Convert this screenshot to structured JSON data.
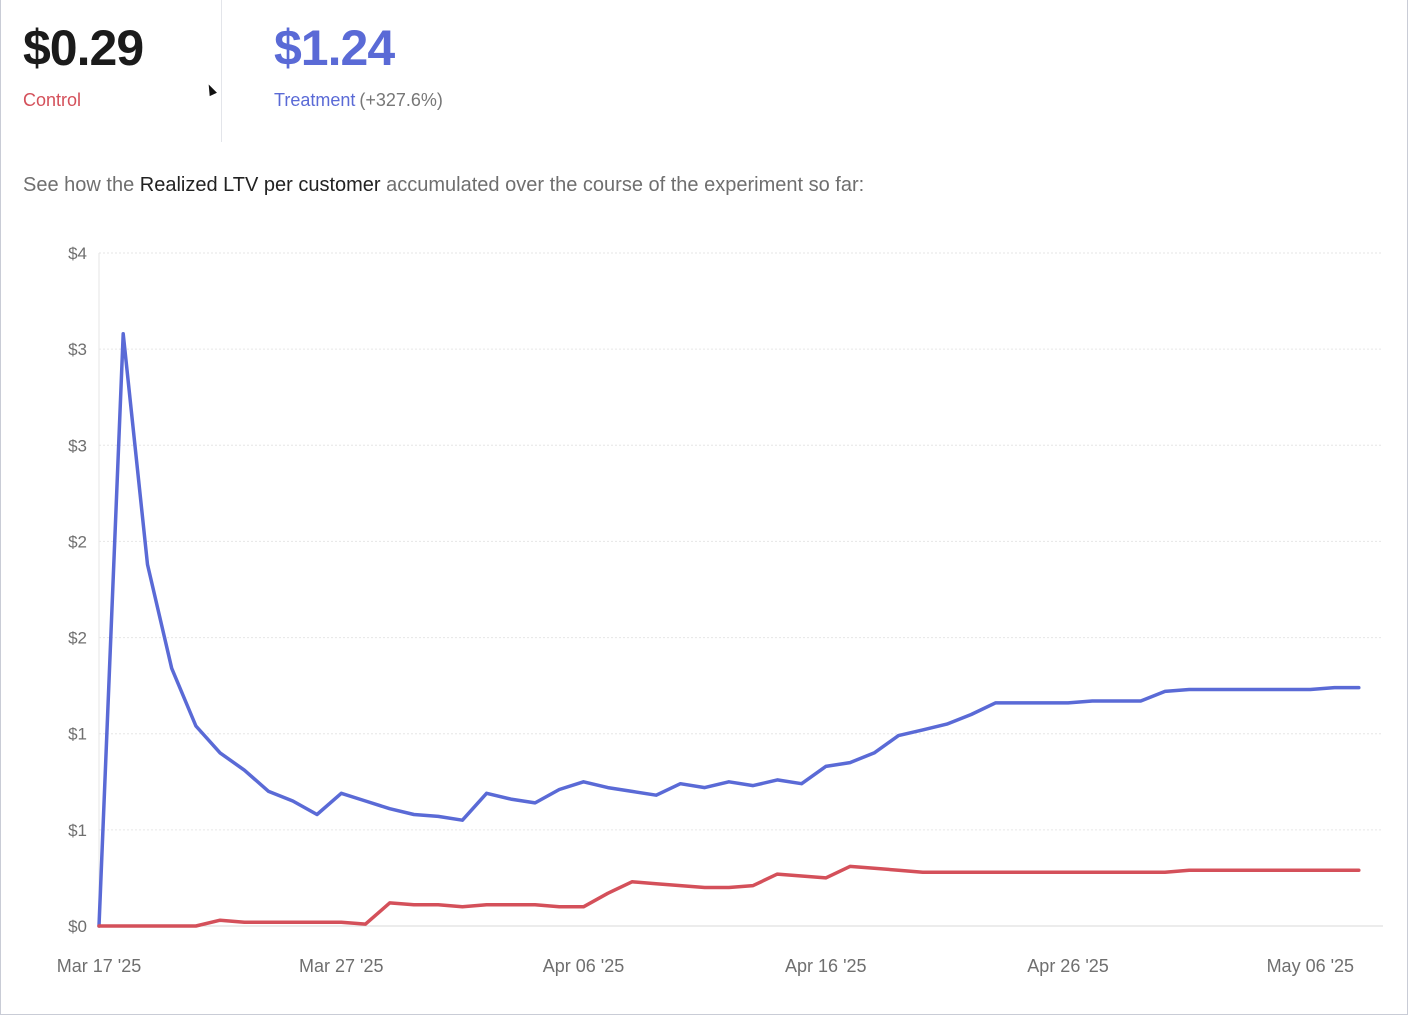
{
  "stats": {
    "control": {
      "value": "$0.29",
      "label": "Control"
    },
    "treatment": {
      "value": "$1.24",
      "label": "Treatment",
      "delta": "(+327.6%)"
    }
  },
  "caption": {
    "prefix": "See how the ",
    "metric": "Realized LTV per customer",
    "suffix": " accumulated over the course of the experiment so far:"
  },
  "colors": {
    "control": "#d4505a",
    "treatment": "#5a6ad6",
    "grid": "#e6e6e6"
  },
  "chart_data": {
    "type": "line",
    "title": "",
    "xlabel": "",
    "ylabel": "",
    "grid": true,
    "ylim": [
      0,
      3.5
    ],
    "y_ticks": [
      {
        "value": 0,
        "label": "$0"
      },
      {
        "value": 0.5,
        "label": "$1"
      },
      {
        "value": 1.0,
        "label": "$1"
      },
      {
        "value": 1.5,
        "label": "$2"
      },
      {
        "value": 2.0,
        "label": "$2"
      },
      {
        "value": 2.5,
        "label": "$3"
      },
      {
        "value": 3.0,
        "label": "$3"
      },
      {
        "value": 3.5,
        "label": "$4"
      }
    ],
    "x_ticks": [
      {
        "value": 0,
        "label": "Mar 17 '25"
      },
      {
        "value": 10,
        "label": "Mar 27 '25"
      },
      {
        "value": 20,
        "label": "Apr 06 '25"
      },
      {
        "value": 30,
        "label": "Apr 16 '25"
      },
      {
        "value": 40,
        "label": "Apr 26 '25"
      },
      {
        "value": 50,
        "label": "May 06 '25"
      }
    ],
    "xlim": [
      0,
      53
    ],
    "series": [
      {
        "key": "treatment",
        "values": [
          [
            0,
            0
          ],
          [
            1,
            3.08
          ],
          [
            2,
            1.88
          ],
          [
            3,
            1.34
          ],
          [
            4,
            1.04
          ],
          [
            5,
            0.9
          ],
          [
            6,
            0.81
          ],
          [
            7,
            0.7
          ],
          [
            8,
            0.65
          ],
          [
            9,
            0.58
          ],
          [
            10,
            0.69
          ],
          [
            11,
            0.65
          ],
          [
            12,
            0.61
          ],
          [
            13,
            0.58
          ],
          [
            14,
            0.57
          ],
          [
            15,
            0.55
          ],
          [
            16,
            0.69
          ],
          [
            17,
            0.66
          ],
          [
            18,
            0.64
          ],
          [
            19,
            0.71
          ],
          [
            20,
            0.75
          ],
          [
            21,
            0.72
          ],
          [
            22,
            0.7
          ],
          [
            23,
            0.68
          ],
          [
            24,
            0.74
          ],
          [
            25,
            0.72
          ],
          [
            26,
            0.75
          ],
          [
            27,
            0.73
          ],
          [
            28,
            0.76
          ],
          [
            29,
            0.74
          ],
          [
            30,
            0.83
          ],
          [
            31,
            0.85
          ],
          [
            32,
            0.9
          ],
          [
            33,
            0.99
          ],
          [
            34,
            1.02
          ],
          [
            35,
            1.05
          ],
          [
            36,
            1.1
          ],
          [
            37,
            1.16
          ],
          [
            38,
            1.16
          ],
          [
            39,
            1.16
          ],
          [
            40,
            1.16
          ],
          [
            41,
            1.17
          ],
          [
            42,
            1.17
          ],
          [
            43,
            1.17
          ],
          [
            44,
            1.22
          ],
          [
            45,
            1.23
          ],
          [
            46,
            1.23
          ],
          [
            47,
            1.23
          ],
          [
            48,
            1.23
          ],
          [
            49,
            1.23
          ],
          [
            50,
            1.23
          ],
          [
            51,
            1.24
          ],
          [
            52,
            1.24
          ]
        ]
      },
      {
        "key": "control",
        "values": [
          [
            0,
            0
          ],
          [
            1,
            0
          ],
          [
            2,
            0
          ],
          [
            3,
            0
          ],
          [
            4,
            0
          ],
          [
            5,
            0.03
          ],
          [
            6,
            0.02
          ],
          [
            7,
            0.02
          ],
          [
            8,
            0.02
          ],
          [
            9,
            0.02
          ],
          [
            10,
            0.02
          ],
          [
            11,
            0.01
          ],
          [
            12,
            0.12
          ],
          [
            13,
            0.11
          ],
          [
            14,
            0.11
          ],
          [
            15,
            0.1
          ],
          [
            16,
            0.11
          ],
          [
            17,
            0.11
          ],
          [
            18,
            0.11
          ],
          [
            19,
            0.1
          ],
          [
            20,
            0.1
          ],
          [
            21,
            0.17
          ],
          [
            22,
            0.23
          ],
          [
            23,
            0.22
          ],
          [
            24,
            0.21
          ],
          [
            25,
            0.2
          ],
          [
            26,
            0.2
          ],
          [
            27,
            0.21
          ],
          [
            28,
            0.27
          ],
          [
            29,
            0.26
          ],
          [
            30,
            0.25
          ],
          [
            31,
            0.31
          ],
          [
            32,
            0.3
          ],
          [
            33,
            0.29
          ],
          [
            34,
            0.28
          ],
          [
            35,
            0.28
          ],
          [
            36,
            0.28
          ],
          [
            37,
            0.28
          ],
          [
            38,
            0.28
          ],
          [
            39,
            0.28
          ],
          [
            40,
            0.28
          ],
          [
            41,
            0.28
          ],
          [
            42,
            0.28
          ],
          [
            43,
            0.28
          ],
          [
            44,
            0.28
          ],
          [
            45,
            0.29
          ],
          [
            46,
            0.29
          ],
          [
            47,
            0.29
          ],
          [
            48,
            0.29
          ],
          [
            49,
            0.29
          ],
          [
            50,
            0.29
          ],
          [
            51,
            0.29
          ],
          [
            52,
            0.29
          ]
        ]
      }
    ]
  }
}
